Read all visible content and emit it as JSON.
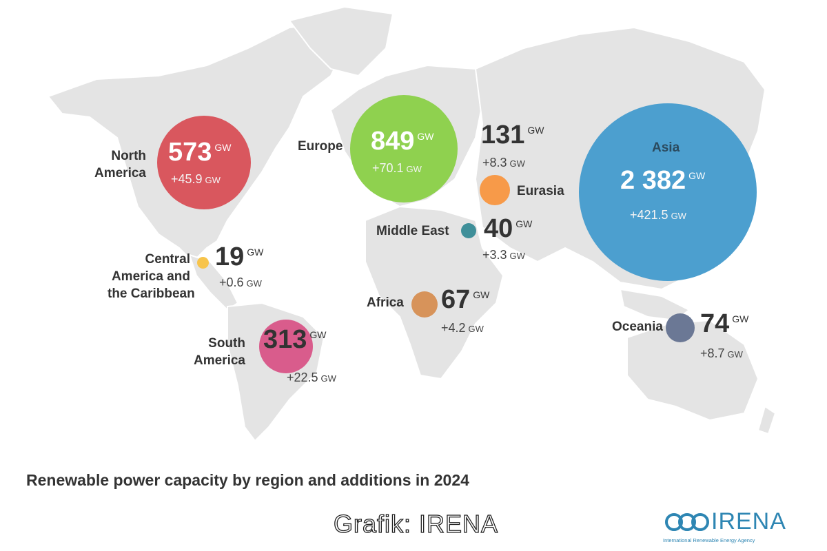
{
  "title": "Renewable power capacity by region and additions in 2024",
  "credit": "Grafik: IRENA",
  "logo": {
    "name": "IRENA",
    "tagline": "International Renewable Energy Agency",
    "color": "#2e86b3"
  },
  "unit": "GW",
  "regions": [
    {
      "id": "north-america",
      "name_lines": [
        "North",
        "America"
      ],
      "capacity": "573",
      "addition": "+45.9",
      "capacity_gw": 573,
      "addition_gw": 45.9,
      "color": "#d9575e"
    },
    {
      "id": "europe",
      "name_lines": [
        "Europe"
      ],
      "capacity": "849",
      "addition": "+70.1",
      "capacity_gw": 849,
      "addition_gw": 70.1,
      "color": "#8fd14f"
    },
    {
      "id": "eurasia",
      "name_lines": [
        "Eurasia"
      ],
      "capacity": "131",
      "addition": "+8.3",
      "capacity_gw": 131,
      "addition_gw": 8.3,
      "color": "#f79a49"
    },
    {
      "id": "asia",
      "name_lines": [
        "Asia"
      ],
      "capacity": "2 382",
      "addition": "+421.5",
      "capacity_gw": 2382,
      "addition_gw": 421.5,
      "color": "#4c9fcf"
    },
    {
      "id": "middle-east",
      "name_lines": [
        "Middle East"
      ],
      "capacity": "40",
      "addition": "+3.3",
      "capacity_gw": 40,
      "addition_gw": 3.3,
      "color": "#3f8f99"
    },
    {
      "id": "central-america",
      "name_lines": [
        "Central",
        "America and",
        "the Caribbean"
      ],
      "capacity": "19",
      "addition": "+0.6",
      "capacity_gw": 19,
      "addition_gw": 0.6,
      "color": "#f7c44c"
    },
    {
      "id": "africa",
      "name_lines": [
        "Africa"
      ],
      "capacity": "67",
      "addition": "+4.2",
      "capacity_gw": 67,
      "addition_gw": 4.2,
      "color": "#d7935a"
    },
    {
      "id": "south-america",
      "name_lines": [
        "South",
        "America"
      ],
      "capacity": "313",
      "addition": "+22.5",
      "capacity_gw": 313,
      "addition_gw": 22.5,
      "color": "#d95c8c"
    },
    {
      "id": "oceania",
      "name_lines": [
        "Oceania"
      ],
      "capacity": "74",
      "addition": "+8.7",
      "capacity_gw": 74,
      "addition_gw": 8.7,
      "color": "#6b7895"
    }
  ]
}
